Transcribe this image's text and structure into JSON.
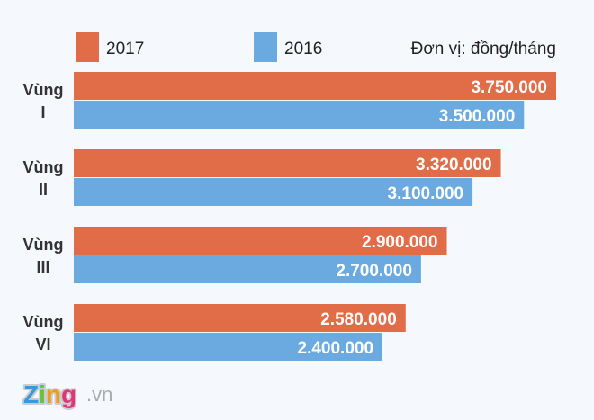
{
  "chart_data": {
    "type": "bar",
    "orientation": "horizontal",
    "unit_note": "Đơn vị: đồng/tháng",
    "categories": [
      [
        "Vùng",
        "I"
      ],
      [
        "Vùng",
        "II"
      ],
      [
        "Vùng",
        "III"
      ],
      [
        "Vùng",
        "VI"
      ]
    ],
    "series": [
      {
        "name": "2017",
        "color": "#e06c48",
        "values": [
          3750000,
          3320000,
          2900000,
          2580000
        ],
        "labels": [
          "3.750.000",
          "3.320.000",
          "2.900.000",
          "2.580.000"
        ]
      },
      {
        "name": "2016",
        "color": "#6aaae0",
        "values": [
          3500000,
          3100000,
          2700000,
          2400000
        ],
        "labels": [
          "3.500.000",
          "3.100.000",
          "2.700.000",
          "2.400.000"
        ]
      }
    ],
    "xlim": [
      0,
      3750000
    ],
    "grid": false,
    "legend_placement": "top"
  },
  "logo": {
    "brand": "Zing",
    "suffix": ".vn"
  }
}
